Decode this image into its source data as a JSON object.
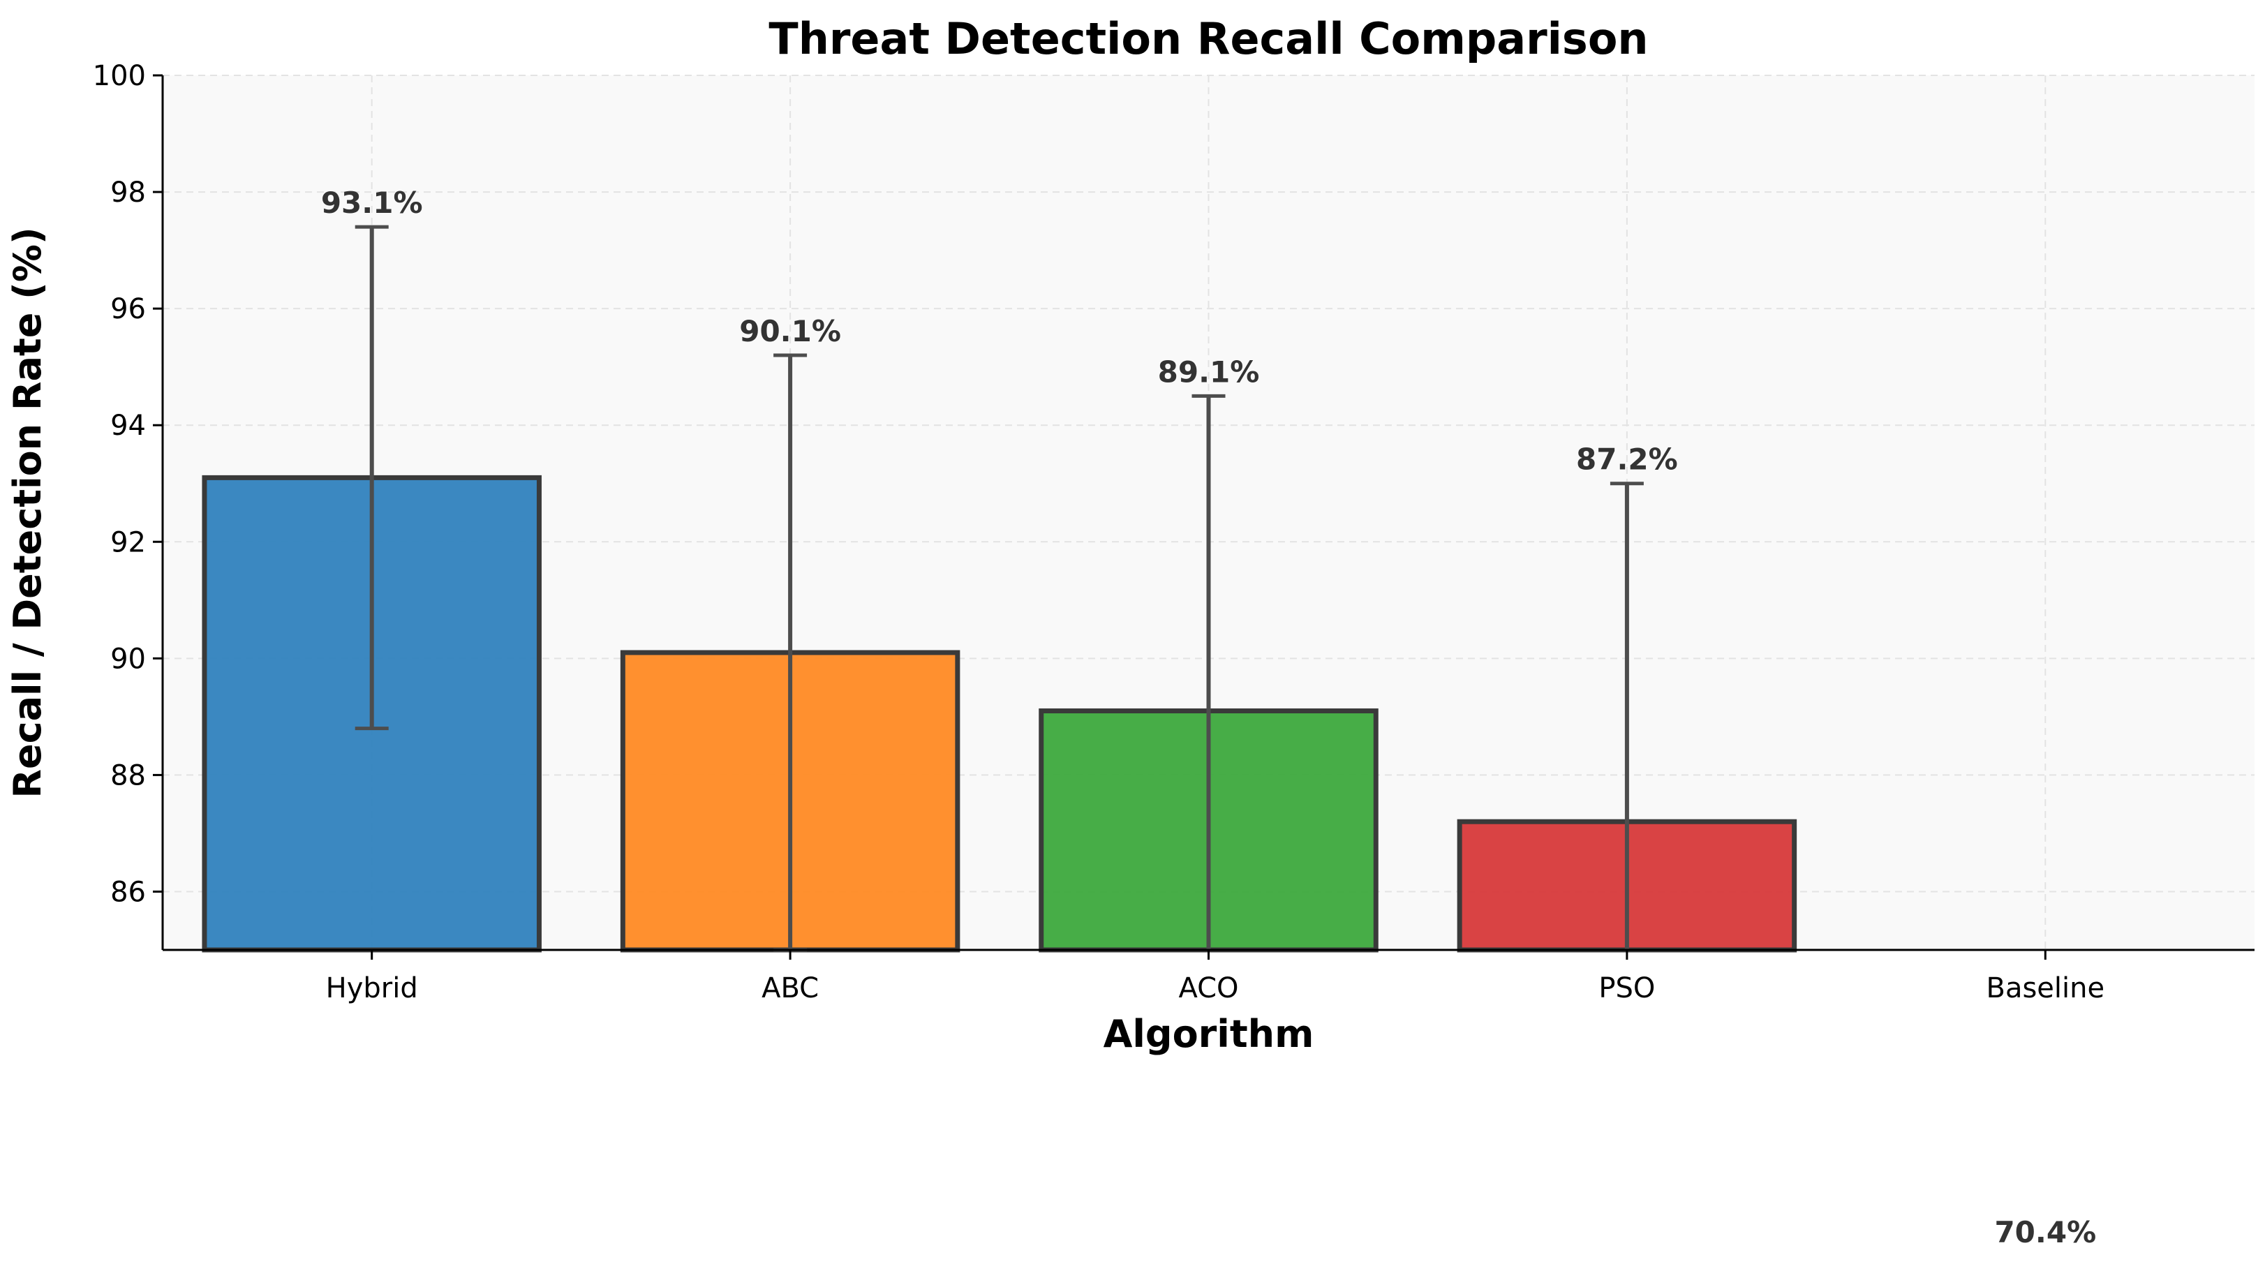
{
  "chart_data": {
    "type": "bar",
    "title": "Threat Detection Recall Comparison",
    "xlabel": "Algorithm",
    "ylabel": "Recall / Detection Rate (%)",
    "categories": [
      "Hybrid",
      "ABC",
      "ACO",
      "PSO",
      "Baseline"
    ],
    "values": [
      93.1,
      90.1,
      89.1,
      87.2,
      70.4
    ],
    "value_labels": [
      "93.1%",
      "90.1%",
      "89.1%",
      "87.2%",
      "70.4%"
    ],
    "error_bars": [
      {
        "low": 88.8,
        "high": 97.4
      },
      {
        "low": 85.0,
        "high": 95.2
      },
      {
        "low": 83.8,
        "high": 94.5
      },
      {
        "low": 81.4,
        "high": 93.0
      },
      null
    ],
    "colors": [
      "#3584bf",
      "#ff8c28",
      "#41aa41",
      "#d83d3e",
      "#9467bd"
    ],
    "edge_color": "#3a3a3a",
    "error_color": "#4d4d4d",
    "plot_background": "#f9f9f9",
    "ylim": [
      85,
      100
    ],
    "yticks": [
      86,
      88,
      90,
      92,
      94,
      96,
      98,
      100
    ],
    "grid": true
  }
}
